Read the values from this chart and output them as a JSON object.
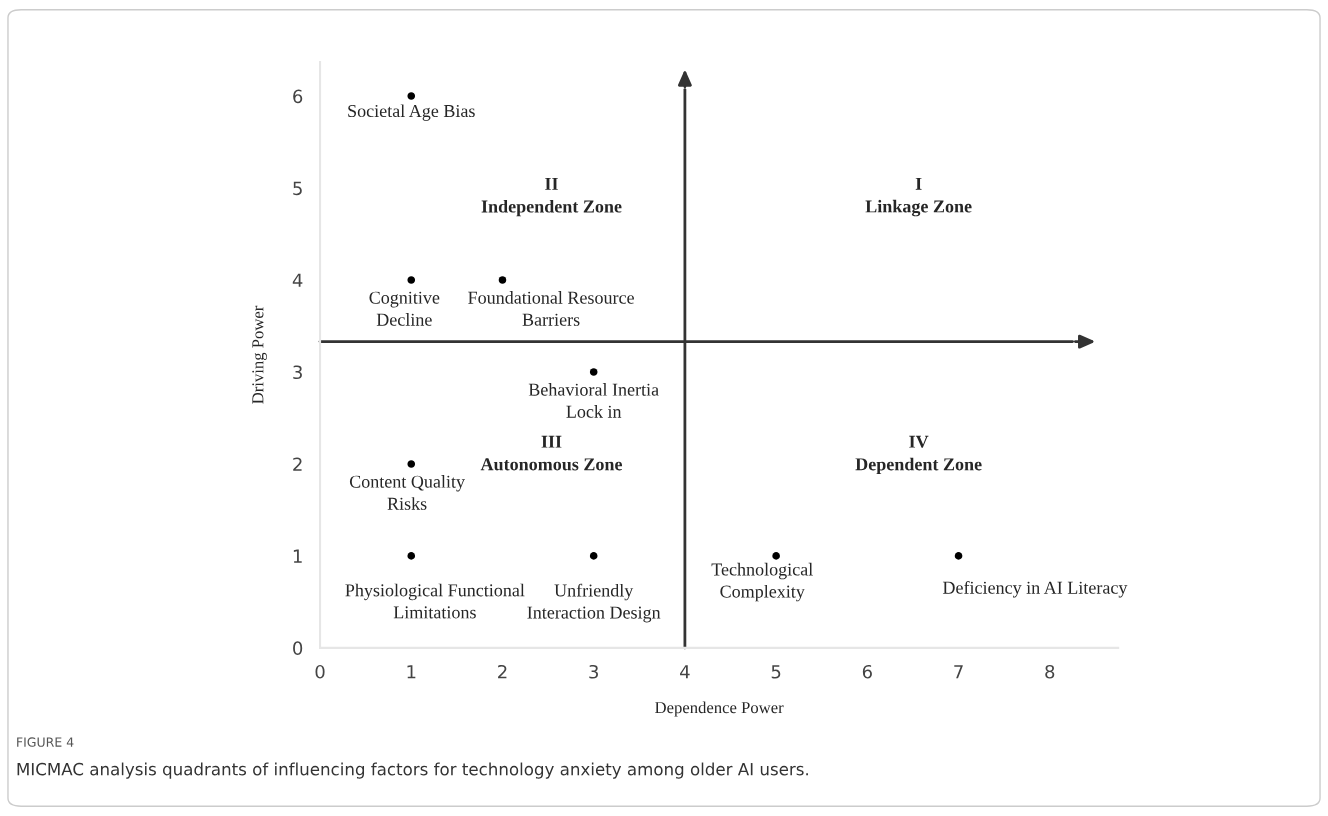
{
  "chart_data": {
    "type": "scatter",
    "title": "FIGURE 4",
    "subtitle": "MICMAC analysis quadrants of influencing factors for technology anxiety among older AI users.",
    "xlabel": "Dependence Power",
    "ylabel": "Driving Power",
    "x": [
      1,
      1,
      2,
      3,
      1,
      1,
      3,
      5,
      7
    ],
    "series": [
      {
        "color": "#000000",
        "values": [
          6,
          4,
          4,
          3,
          2,
          1,
          1,
          1,
          1
        ]
      }
    ],
    "marker": "circle",
    "xlim": [
      0,
      8.75
    ],
    "ylim": [
      0,
      6.37
    ],
    "xticks": [
      0,
      1,
      2,
      3,
      4,
      5,
      6,
      7,
      8
    ],
    "yticks": [
      0,
      1,
      2,
      3,
      4,
      5,
      6
    ],
    "grid": false,
    "ref_lines": [
      {
        "axis": "x",
        "value": 4,
        "color": "#333333"
      },
      {
        "axis": "y",
        "value": 3.33,
        "color": "#333333"
      }
    ],
    "annotations": [
      {
        "text": "Societal Age Bias",
        "x": 1,
        "y": 6
      },
      {
        "text": "Cognitive\nDecline",
        "x": 1,
        "y": 4
      },
      {
        "text": "Foundational Resource\nBarriers",
        "x": 2,
        "y": 4
      },
      {
        "text": "Behavioral Inertia\nLock in",
        "x": 3,
        "y": 3
      },
      {
        "text": "Content Quality\nRisks",
        "x": 1,
        "y": 2
      },
      {
        "text": "Physiological Functional\nLimitations",
        "x": 1,
        "y": 1
      },
      {
        "text": "Unfriendly\nInteraction Design",
        "x": 3,
        "y": 1
      },
      {
        "text": "Technological\nComplexity",
        "x": 5,
        "y": 1
      },
      {
        "text": "Deficiency in AI Literacy",
        "x": 7,
        "y": 1
      },
      "I\nLinkage Zone",
      "II\nIndependent Zone",
      "III\nAutonomous Zone",
      "IV\nDependent Zone"
    ]
  }
}
